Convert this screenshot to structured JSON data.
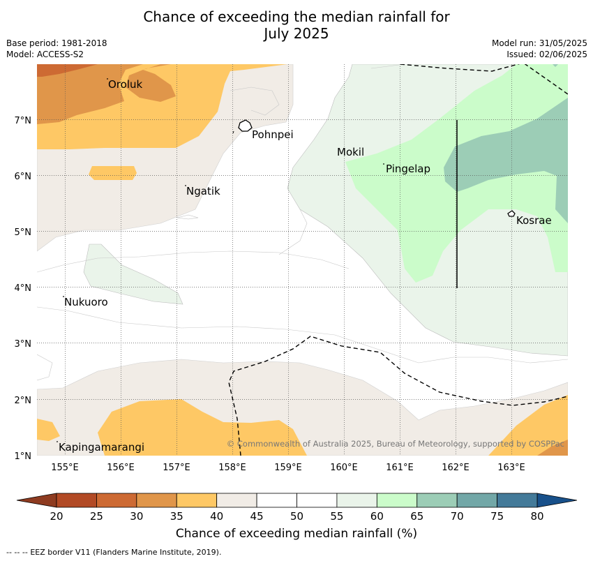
{
  "header": {
    "title_line1": "Chance of exceeding the median rainfall for",
    "title_line2": "July 2025",
    "base_period": "Base period: 1981-2018",
    "model": "Model: ACCESS-S2",
    "model_run": "Model run: 31/05/2025",
    "issued": "Issued: 02/06/2025"
  },
  "map": {
    "longitude_labels": [
      "155°E",
      "156°E",
      "157°E",
      "158°E",
      "159°E",
      "160°E",
      "161°E",
      "162°E",
      "163°E"
    ],
    "latitude_labels": [
      "1°N",
      "2°N",
      "3°N",
      "4°N",
      "5°N",
      "6°N",
      "7°N"
    ],
    "places": [
      {
        "name": "Oroluk"
      },
      {
        "name": "Pohnpei"
      },
      {
        "name": "Mokil"
      },
      {
        "name": "Pingelap"
      },
      {
        "name": "Ngatik"
      },
      {
        "name": "Kosrae"
      },
      {
        "name": "Nukuoro"
      },
      {
        "name": "Kapingamarangi"
      }
    ],
    "copyright": "© Commonwealth of Australia 2025, Bureau of Meteorology, supported by COSPPac"
  },
  "colorbar": {
    "ticks": [
      "20",
      "25",
      "30",
      "35",
      "40",
      "45",
      "50",
      "55",
      "60",
      "65",
      "70",
      "75",
      "80"
    ],
    "colors": [
      "#b24a25",
      "#cd6a33",
      "#e0964a",
      "#fec865",
      "#f1ece6",
      "#ffffff",
      "#ffffff",
      "#eaf4ea",
      "#cbfcca",
      "#9ccdb6",
      "#72a7a7",
      "#437a99"
    ],
    "under_color": "#8e3b20",
    "over_color": "#18508a",
    "label": "Chance of exceeding median rainfall (%)"
  },
  "footer": {
    "legend_marker": "--  --  --",
    "text": "EEZ border V11 (Flanders Marine Institute, 2019)."
  }
}
